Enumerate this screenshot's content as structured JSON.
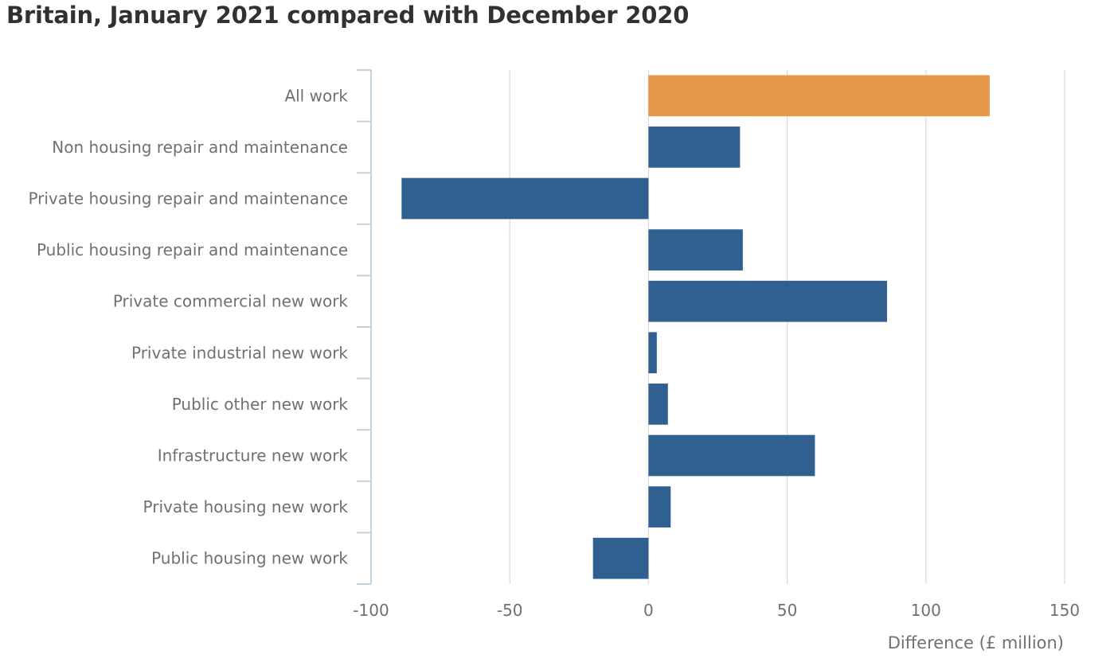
{
  "chart_data": {
    "type": "bar",
    "orientation": "horizontal",
    "title": "Britain, January 2021 compared with December 2020",
    "xlabel": "Difference (£ million)",
    "ylabel": "",
    "xlim": [
      -100,
      150
    ],
    "xticks": [
      -100,
      -50,
      0,
      50,
      100,
      150
    ],
    "grid": true,
    "legend": "none",
    "categories": [
      "All work",
      "Non housing repair and maintenance",
      "Private housing repair and maintenance",
      "Public housing repair and maintenance",
      "Private commercial new work",
      "Private industrial new work",
      "Public other new work",
      "Infrastructure new work",
      "Private housing new work",
      "Public housing new work"
    ],
    "values": [
      123,
      33,
      -89,
      34,
      86,
      3,
      7,
      60,
      8,
      -20
    ],
    "colors": {
      "highlight": "#E5974A",
      "bar": "#30608F",
      "grid": "#DCDCDC",
      "axis": "#C4D2DE"
    },
    "highlight_index": 0
  }
}
